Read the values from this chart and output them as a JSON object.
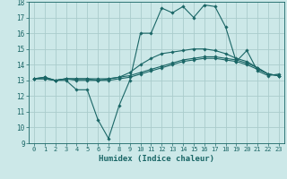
{
  "xlabel": "Humidex (Indice chaleur)",
  "background_color": "#cce8e8",
  "grid_color": "#aacccc",
  "line_color": "#1a6666",
  "xlim": [
    -0.5,
    23.5
  ],
  "ylim": [
    9,
    18
  ],
  "yticks": [
    9,
    10,
    11,
    12,
    13,
    14,
    15,
    16,
    17,
    18
  ],
  "xticks": [
    0,
    1,
    2,
    3,
    4,
    5,
    6,
    7,
    8,
    9,
    10,
    11,
    12,
    13,
    14,
    15,
    16,
    17,
    18,
    19,
    20,
    21,
    22,
    23
  ],
  "lines": [
    {
      "x": [
        0,
        1,
        2,
        3,
        4,
        5,
        6,
        7,
        8,
        9,
        10,
        11,
        12,
        13,
        14,
        15,
        16,
        17,
        18,
        19,
        20,
        21,
        22,
        23
      ],
      "y": [
        13.1,
        13.2,
        13.0,
        13.0,
        12.4,
        12.4,
        10.5,
        9.3,
        11.4,
        13.0,
        16.0,
        16.0,
        17.6,
        17.3,
        17.7,
        17.0,
        17.8,
        17.7,
        16.4,
        14.2,
        14.9,
        13.6,
        13.3,
        13.4
      ]
    },
    {
      "x": [
        0,
        1,
        2,
        3,
        4,
        5,
        6,
        7,
        8,
        9,
        10,
        11,
        12,
        13,
        14,
        15,
        16,
        17,
        18,
        19,
        20,
        21,
        22,
        23
      ],
      "y": [
        13.1,
        13.1,
        13.0,
        13.1,
        13.0,
        13.0,
        13.0,
        13.0,
        13.1,
        13.2,
        13.4,
        13.6,
        13.8,
        14.0,
        14.2,
        14.3,
        14.4,
        14.4,
        14.3,
        14.2,
        14.0,
        13.7,
        13.4,
        13.3
      ]
    },
    {
      "x": [
        0,
        1,
        2,
        3,
        4,
        5,
        6,
        7,
        8,
        9,
        10,
        11,
        12,
        13,
        14,
        15,
        16,
        17,
        18,
        19,
        20,
        21,
        22,
        23
      ],
      "y": [
        13.1,
        13.1,
        13.0,
        13.1,
        13.1,
        13.1,
        13.1,
        13.1,
        13.2,
        13.3,
        13.5,
        13.7,
        13.9,
        14.1,
        14.3,
        14.4,
        14.5,
        14.5,
        14.4,
        14.3,
        14.1,
        13.8,
        13.4,
        13.3
      ]
    },
    {
      "x": [
        0,
        1,
        2,
        3,
        4,
        5,
        6,
        7,
        8,
        9,
        10,
        11,
        12,
        13,
        14,
        15,
        16,
        17,
        18,
        19,
        20,
        21,
        22,
        23
      ],
      "y": [
        13.1,
        13.2,
        13.0,
        13.1,
        13.1,
        13.1,
        13.0,
        13.1,
        13.2,
        13.5,
        14.0,
        14.4,
        14.7,
        14.8,
        14.9,
        15.0,
        15.0,
        14.9,
        14.7,
        14.4,
        14.2,
        13.8,
        13.4,
        13.3
      ]
    }
  ]
}
